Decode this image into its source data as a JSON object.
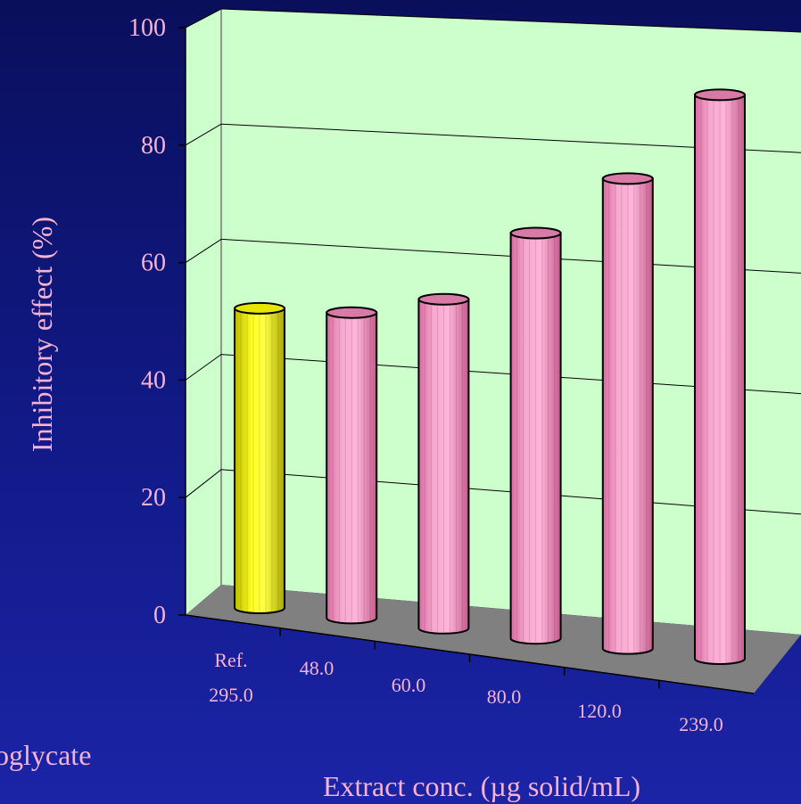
{
  "side_text": "oglycate",
  "chart_data": {
    "type": "bar",
    "categories": [
      {
        "line1": "Ref.",
        "line2": "295.0"
      },
      {
        "line1": "48.0",
        "line2": ""
      },
      {
        "line1": "60.0",
        "line2": ""
      },
      {
        "line1": "80.0",
        "line2": ""
      },
      {
        "line1": "120.0",
        "line2": ""
      },
      {
        "line1": "239.0",
        "line2": ""
      }
    ],
    "values": [
      51,
      52,
      56,
      69,
      80,
      96
    ],
    "bar_colors": [
      "#ffff00",
      "#ffa6d0",
      "#ffa6d0",
      "#ffa6d0",
      "#ffa6d0",
      "#ffa6d0"
    ],
    "ylabel": "Inhibitory effect (%)",
    "xlabel": "Extract conc. (µg solid/mL)",
    "ylim": [
      0,
      100
    ],
    "yticks": [
      "0",
      "20",
      "40",
      "60",
      "80",
      "100"
    ],
    "grid": true,
    "wall_color": "#ccffcc",
    "floor_color": "#808080"
  }
}
